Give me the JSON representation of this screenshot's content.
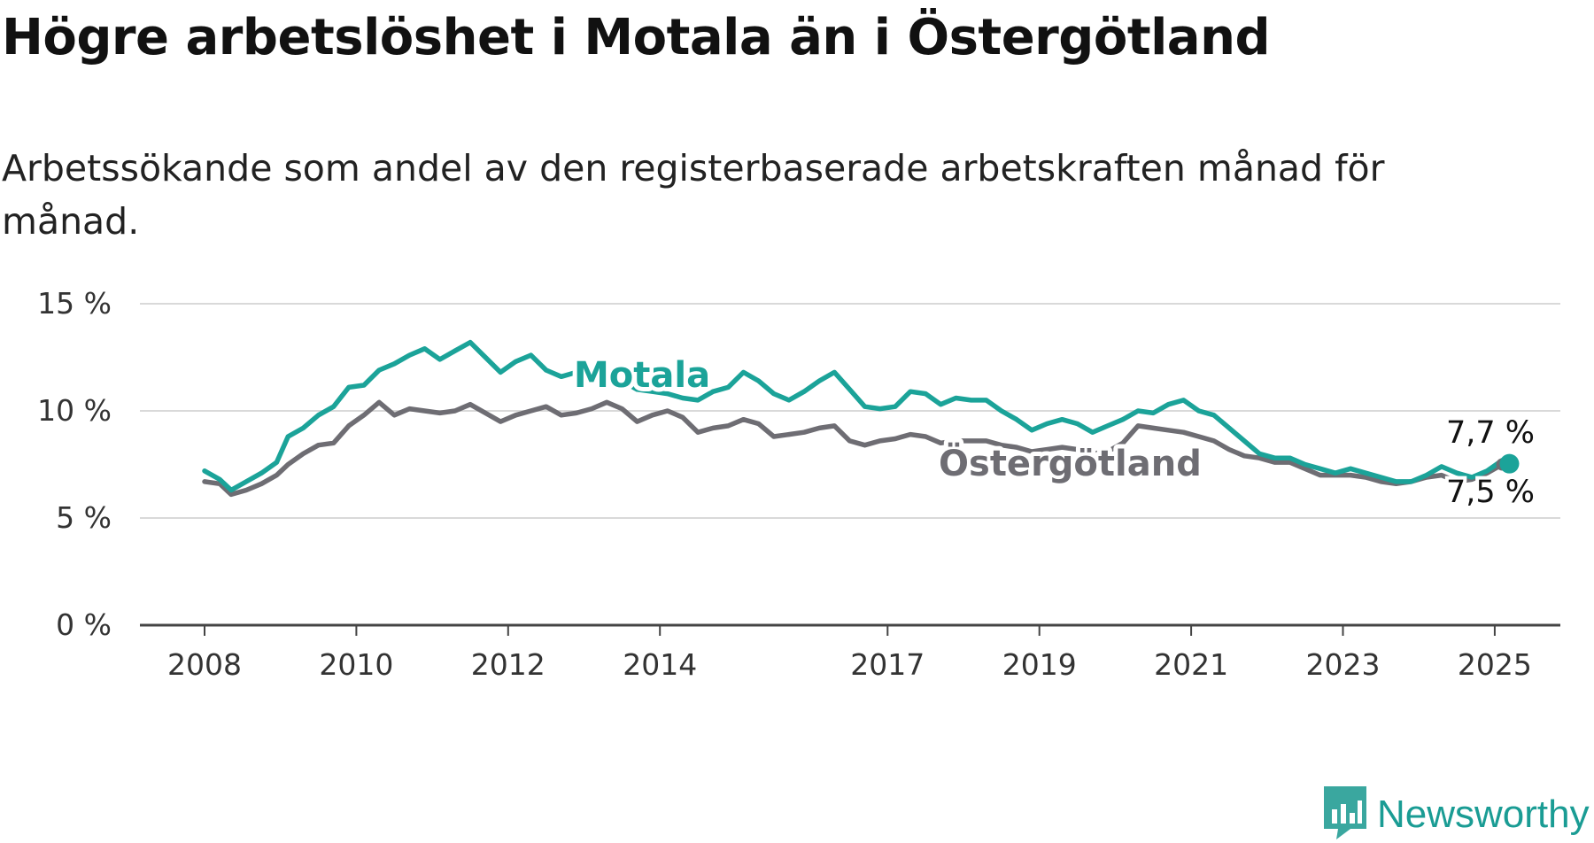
{
  "title": "Högre arbetslöshet i Motala än i Östergötland",
  "subtitle": "Arbetssökande som andel av den registerbaserade arbetskraften månad för månad.",
  "brand": {
    "name": "Newsworthy",
    "icon": "newsworthy-logo-icon"
  },
  "colors": {
    "motala": "#1ba399",
    "ostergotland": "#6e6d73",
    "grid": "#d9d9d9",
    "axis": "#444444",
    "brand": "#1a9c94"
  },
  "chart_data": {
    "type": "line",
    "ylim": [
      0,
      15
    ],
    "yticks": [
      0,
      5,
      10,
      15
    ],
    "ytick_labels": [
      "0 %",
      "5 %",
      "10 %",
      "15 %"
    ],
    "xlim": [
      2008,
      2025.9
    ],
    "xticks": [
      2008,
      2010,
      2012,
      2014,
      2017,
      2019,
      2021,
      2023,
      2025
    ],
    "xtick_labels": [
      "2008",
      "2010",
      "2012",
      "2014",
      "2017",
      "2019",
      "2021",
      "2023",
      "2025"
    ],
    "grid": true,
    "series": [
      {
        "name": "Motala",
        "color": "#1ba399",
        "end_label": "7,7 %",
        "points": [
          [
            2008.0,
            7.2
          ],
          [
            2008.2,
            6.8
          ],
          [
            2008.35,
            6.3
          ],
          [
            2008.55,
            6.7
          ],
          [
            2008.75,
            7.1
          ],
          [
            2008.95,
            7.6
          ],
          [
            2009.1,
            8.8
          ],
          [
            2009.3,
            9.2
          ],
          [
            2009.5,
            9.8
          ],
          [
            2009.7,
            10.2
          ],
          [
            2009.9,
            11.1
          ],
          [
            2010.1,
            11.2
          ],
          [
            2010.3,
            11.9
          ],
          [
            2010.5,
            12.2
          ],
          [
            2010.7,
            12.6
          ],
          [
            2010.9,
            12.9
          ],
          [
            2011.1,
            12.4
          ],
          [
            2011.3,
            12.8
          ],
          [
            2011.5,
            13.2
          ],
          [
            2011.7,
            12.5
          ],
          [
            2011.9,
            11.8
          ],
          [
            2012.1,
            12.3
          ],
          [
            2012.3,
            12.6
          ],
          [
            2012.5,
            11.9
          ],
          [
            2012.7,
            11.6
          ],
          [
            2012.9,
            11.8
          ],
          [
            2013.1,
            12.1
          ],
          [
            2013.3,
            11.8
          ],
          [
            2013.5,
            11.4
          ],
          [
            2013.7,
            11.0
          ],
          [
            2013.9,
            10.9
          ],
          [
            2014.1,
            10.8
          ],
          [
            2014.3,
            10.6
          ],
          [
            2014.5,
            10.5
          ],
          [
            2014.7,
            10.9
          ],
          [
            2014.9,
            11.1
          ],
          [
            2015.1,
            11.8
          ],
          [
            2015.3,
            11.4
          ],
          [
            2015.5,
            10.8
          ],
          [
            2015.7,
            10.5
          ],
          [
            2015.9,
            10.9
          ],
          [
            2016.1,
            11.4
          ],
          [
            2016.3,
            11.8
          ],
          [
            2016.5,
            11.0
          ],
          [
            2016.7,
            10.2
          ],
          [
            2016.9,
            10.1
          ],
          [
            2017.1,
            10.2
          ],
          [
            2017.3,
            10.9
          ],
          [
            2017.5,
            10.8
          ],
          [
            2017.7,
            10.3
          ],
          [
            2017.9,
            10.6
          ],
          [
            2018.1,
            10.5
          ],
          [
            2018.3,
            10.5
          ],
          [
            2018.5,
            10.0
          ],
          [
            2018.7,
            9.6
          ],
          [
            2018.9,
            9.1
          ],
          [
            2019.1,
            9.4
          ],
          [
            2019.3,
            9.6
          ],
          [
            2019.5,
            9.4
          ],
          [
            2019.7,
            9.0
          ],
          [
            2019.9,
            9.3
          ],
          [
            2020.1,
            9.6
          ],
          [
            2020.3,
            10.0
          ],
          [
            2020.5,
            9.9
          ],
          [
            2020.7,
            10.3
          ],
          [
            2020.9,
            10.5
          ],
          [
            2021.1,
            10.0
          ],
          [
            2021.3,
            9.8
          ],
          [
            2021.5,
            9.2
          ],
          [
            2021.7,
            8.6
          ],
          [
            2021.9,
            8.0
          ],
          [
            2022.1,
            7.8
          ],
          [
            2022.3,
            7.8
          ],
          [
            2022.5,
            7.5
          ],
          [
            2022.7,
            7.3
          ],
          [
            2022.9,
            7.1
          ],
          [
            2023.1,
            7.3
          ],
          [
            2023.3,
            7.1
          ],
          [
            2023.5,
            6.9
          ],
          [
            2023.7,
            6.7
          ],
          [
            2023.9,
            6.7
          ],
          [
            2024.1,
            7.0
          ],
          [
            2024.3,
            7.4
          ],
          [
            2024.5,
            7.1
          ],
          [
            2024.7,
            6.9
          ],
          [
            2024.9,
            7.2
          ],
          [
            2025.1,
            7.7
          ]
        ]
      },
      {
        "name": "Östergötland",
        "color": "#6e6d73",
        "end_label": "7,5 %",
        "points": [
          [
            2008.0,
            6.7
          ],
          [
            2008.2,
            6.6
          ],
          [
            2008.35,
            6.1
          ],
          [
            2008.55,
            6.3
          ],
          [
            2008.75,
            6.6
          ],
          [
            2008.95,
            7.0
          ],
          [
            2009.1,
            7.5
          ],
          [
            2009.3,
            8.0
          ],
          [
            2009.5,
            8.4
          ],
          [
            2009.7,
            8.5
          ],
          [
            2009.9,
            9.3
          ],
          [
            2010.1,
            9.8
          ],
          [
            2010.3,
            10.4
          ],
          [
            2010.5,
            9.8
          ],
          [
            2010.7,
            10.1
          ],
          [
            2010.9,
            10.0
          ],
          [
            2011.1,
            9.9
          ],
          [
            2011.3,
            10.0
          ],
          [
            2011.5,
            10.3
          ],
          [
            2011.7,
            9.9
          ],
          [
            2011.9,
            9.5
          ],
          [
            2012.1,
            9.8
          ],
          [
            2012.3,
            10.0
          ],
          [
            2012.5,
            10.2
          ],
          [
            2012.7,
            9.8
          ],
          [
            2012.9,
            9.9
          ],
          [
            2013.1,
            10.1
          ],
          [
            2013.3,
            10.4
          ],
          [
            2013.5,
            10.1
          ],
          [
            2013.7,
            9.5
          ],
          [
            2013.9,
            9.8
          ],
          [
            2014.1,
            10.0
          ],
          [
            2014.3,
            9.7
          ],
          [
            2014.5,
            9.0
          ],
          [
            2014.7,
            9.2
          ],
          [
            2014.9,
            9.3
          ],
          [
            2015.1,
            9.6
          ],
          [
            2015.3,
            9.4
          ],
          [
            2015.5,
            8.8
          ],
          [
            2015.7,
            8.9
          ],
          [
            2015.9,
            9.0
          ],
          [
            2016.1,
            9.2
          ],
          [
            2016.3,
            9.3
          ],
          [
            2016.5,
            8.6
          ],
          [
            2016.7,
            8.4
          ],
          [
            2016.9,
            8.6
          ],
          [
            2017.1,
            8.7
          ],
          [
            2017.3,
            8.9
          ],
          [
            2017.5,
            8.8
          ],
          [
            2017.7,
            8.5
          ],
          [
            2017.9,
            8.6
          ],
          [
            2018.1,
            8.6
          ],
          [
            2018.3,
            8.6
          ],
          [
            2018.5,
            8.4
          ],
          [
            2018.7,
            8.3
          ],
          [
            2018.9,
            8.1
          ],
          [
            2019.1,
            8.2
          ],
          [
            2019.3,
            8.3
          ],
          [
            2019.5,
            8.2
          ],
          [
            2019.7,
            8.0
          ],
          [
            2019.9,
            8.1
          ],
          [
            2020.1,
            8.5
          ],
          [
            2020.3,
            9.3
          ],
          [
            2020.5,
            9.2
          ],
          [
            2020.7,
            9.1
          ],
          [
            2020.9,
            9.0
          ],
          [
            2021.1,
            8.8
          ],
          [
            2021.3,
            8.6
          ],
          [
            2021.5,
            8.2
          ],
          [
            2021.7,
            7.9
          ],
          [
            2021.9,
            7.8
          ],
          [
            2022.1,
            7.6
          ],
          [
            2022.3,
            7.6
          ],
          [
            2022.5,
            7.3
          ],
          [
            2022.7,
            7.0
          ],
          [
            2022.9,
            7.0
          ],
          [
            2023.1,
            7.0
          ],
          [
            2023.3,
            6.9
          ],
          [
            2023.5,
            6.7
          ],
          [
            2023.7,
            6.6
          ],
          [
            2023.9,
            6.7
          ],
          [
            2024.1,
            6.9
          ],
          [
            2024.3,
            7.0
          ],
          [
            2024.5,
            6.7
          ],
          [
            2024.7,
            6.8
          ],
          [
            2024.9,
            7.1
          ],
          [
            2025.1,
            7.5
          ]
        ]
      }
    ]
  }
}
